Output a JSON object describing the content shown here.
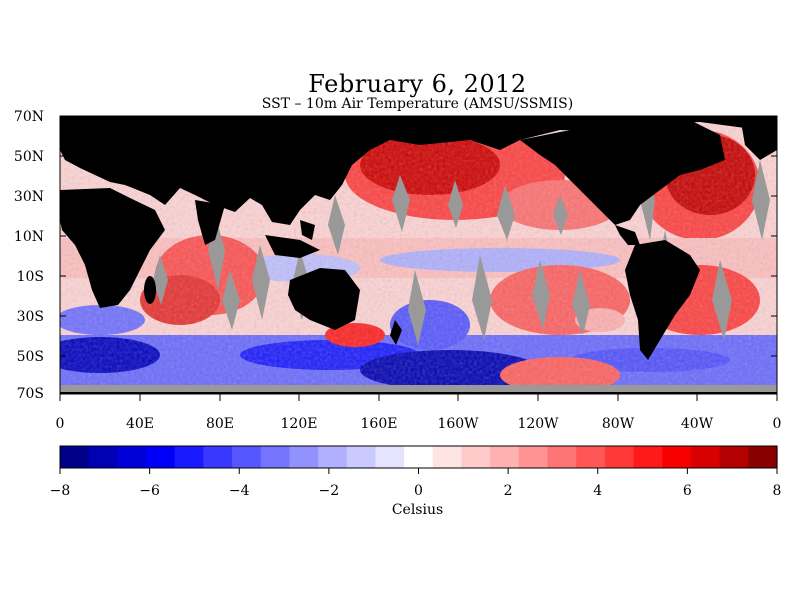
{
  "title": "February 6, 2012",
  "subtitle": "SST – 10m Air Temperature (AMSU/SSMIS)",
  "lat_labels": [
    "70N",
    "50N",
    "30N",
    "10N",
    "10S",
    "30S",
    "50S",
    "70S"
  ],
  "lon_labels": [
    "0",
    "40E",
    "80E",
    "120E",
    "160E",
    "160W",
    "120W",
    "80W",
    "40W",
    "0"
  ],
  "colorbar": {
    "label": "Celsius",
    "min": -8,
    "max": 8,
    "tick_labels": [
      "−8",
      "−6",
      "−4",
      "−2",
      "0",
      "2",
      "4",
      "6",
      "8"
    ],
    "colors": [
      "#00008a",
      "#0000b4",
      "#0000d8",
      "#0000f8",
      "#1a1aff",
      "#3838ff",
      "#5656ff",
      "#7474ff",
      "#9292ff",
      "#b0b0ff",
      "#cacaff",
      "#e4e4ff",
      "#ffffff",
      "#ffe4e4",
      "#ffcaca",
      "#ffb0b0",
      "#ff9292",
      "#ff7474",
      "#ff5656",
      "#ff3838",
      "#ff1a1a",
      "#f80000",
      "#d80000",
      "#b40000",
      "#8a0000"
    ]
  },
  "legend_colors": {
    "land": "#000000",
    "no_data": "#999999"
  }
}
